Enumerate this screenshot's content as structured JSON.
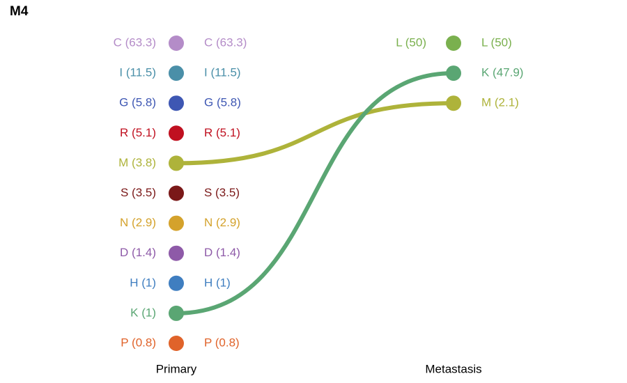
{
  "chart_data": {
    "type": "sankey-dot",
    "title": "M4",
    "columns": [
      "Primary",
      "Metastasis"
    ],
    "primary": [
      {
        "label": "C",
        "value": 63.3,
        "color": "#b48cc8"
      },
      {
        "label": "I",
        "value": 11.5,
        "color": "#4a8fa8"
      },
      {
        "label": "G",
        "value": 5.8,
        "color": "#3e57b3"
      },
      {
        "label": "R",
        "value": 5.1,
        "color": "#c01020"
      },
      {
        "label": "M",
        "value": 3.8,
        "color": "#aeb33a"
      },
      {
        "label": "S",
        "value": 3.5,
        "color": "#7a1818"
      },
      {
        "label": "N",
        "value": 2.9,
        "color": "#d4a22c"
      },
      {
        "label": "D",
        "value": 1.4,
        "color": "#8e5aa8"
      },
      {
        "label": "H",
        "value": 1,
        "color": "#3f7ec0"
      },
      {
        "label": "K",
        "value": 1,
        "color": "#5aa673"
      },
      {
        "label": "P",
        "value": 0.8,
        "color": "#e0632a"
      }
    ],
    "metastasis": [
      {
        "label": "L",
        "value": 50,
        "color": "#7ab04e"
      },
      {
        "label": "K",
        "value": 47.9,
        "color": "#5aa673"
      },
      {
        "label": "M",
        "value": 2.1,
        "color": "#aeb33a"
      }
    ],
    "links": [
      {
        "from": "M",
        "to": "M",
        "color": "#aeb33a"
      },
      {
        "from": "K",
        "to": "K",
        "color": "#5aa673"
      }
    ]
  }
}
